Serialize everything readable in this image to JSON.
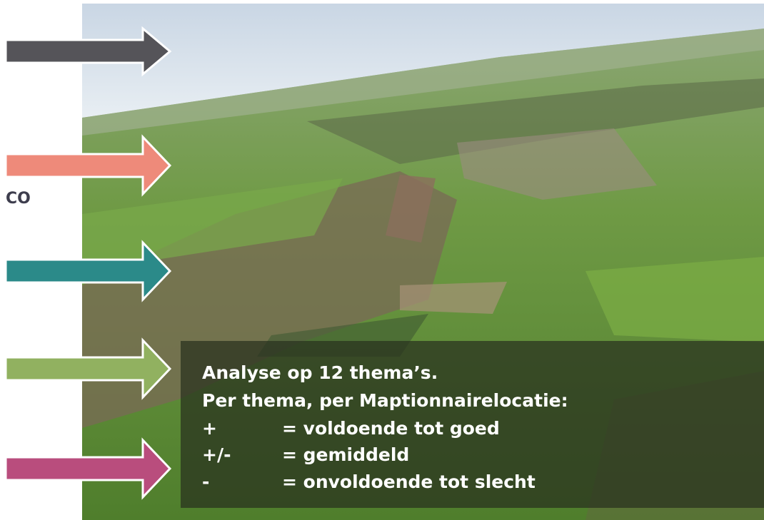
{
  "side_label": "CO",
  "overlay": {
    "title": "Analyse op 12 thema’s.",
    "subtitle": "Per thema, per Maptionnairelocatie:",
    "legend": [
      {
        "symbol": "+",
        "meaning": "= voldoende tot goed"
      },
      {
        "symbol": "+/-",
        "meaning": "= gemiddeld"
      },
      {
        "symbol": "-",
        "meaning": "= onvoldoende tot slecht"
      }
    ]
  }
}
